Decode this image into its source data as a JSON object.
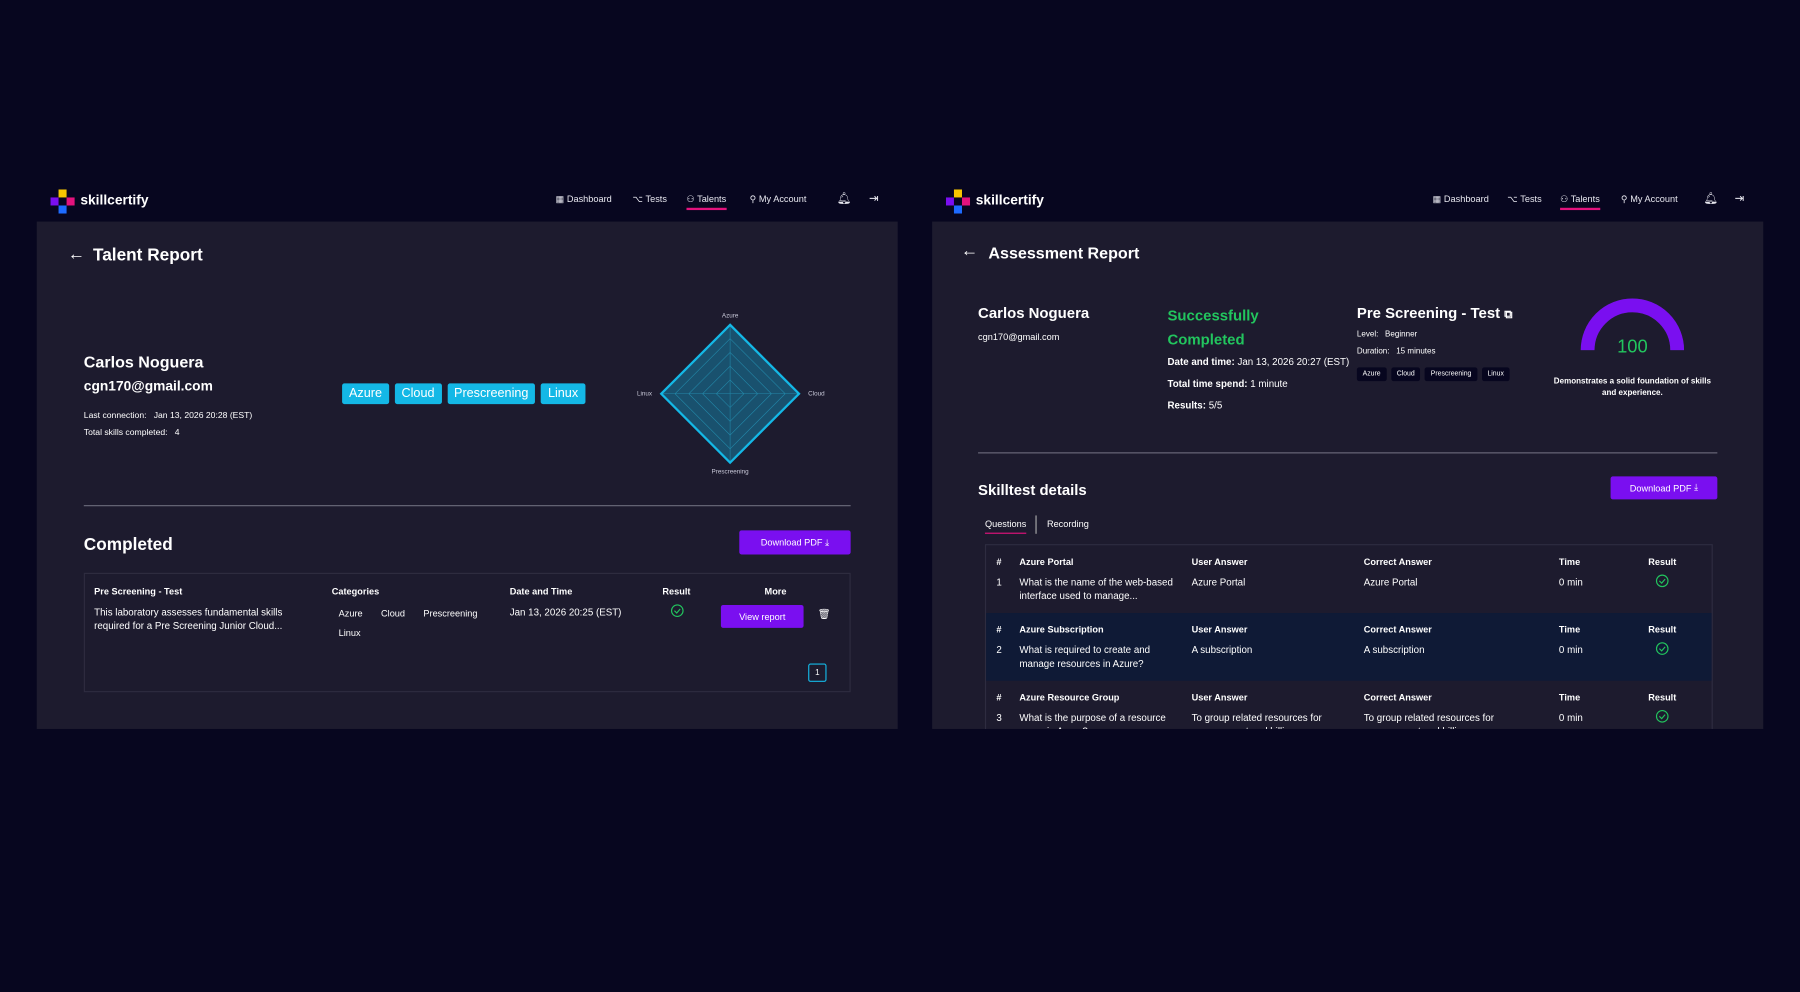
{
  "left": {
    "nav": {
      "logo": "skillcertify",
      "items": [
        "Dashboard",
        "Tests",
        "Talents",
        "My Account"
      ]
    },
    "title": "Talent Report",
    "profile": {
      "name": "Carlos Noguera",
      "email": "cgn170@gmail.com",
      "last_connection_label": "Last connection:",
      "last_connection": "Jan 13, 2026 20:28 (EST)",
      "skills_label": "Total skills completed:",
      "skills": 4
    },
    "tags": [
      "Azure",
      "Cloud",
      "Prescreening",
      "Linux"
    ],
    "radar": {
      "type": "radar",
      "categories": [
        "Azure",
        "Cloud",
        "Prescreening",
        "Linux"
      ],
      "values": [
        100,
        100,
        100,
        100
      ],
      "rlim": [
        0,
        100
      ]
    },
    "section": "Completed",
    "download": "Download PDF",
    "table": {
      "headers": [
        "Pre Screening - Test",
        "Categories",
        "Date and Time",
        "Result",
        "More"
      ],
      "row": {
        "description": "This laboratory assesses fundamental skills required for a Pre Screening Junior Cloud...",
        "categories": [
          "Azure",
          "Cloud",
          "Prescreening",
          "Linux"
        ],
        "date": "Jan 13, 2026 20:25 (EST)",
        "action": "View report"
      }
    },
    "page": 1
  },
  "right": {
    "nav": {
      "logo": "skillcertify",
      "items": [
        "Dashboard",
        "Tests",
        "Talents",
        "My Account"
      ]
    },
    "title": "Assessment Report",
    "profile": {
      "name": "Carlos Noguera",
      "email": "cgn170@gmail.com"
    },
    "status": "Successfully Completed",
    "details": [
      {
        "label": "Date and time:",
        "value": "Jan 13, 2026 20:27 (EST)"
      },
      {
        "label": "Total time spend:",
        "value": "1 minute"
      },
      {
        "label": "Results:",
        "value": "5/5"
      }
    ],
    "test": {
      "name": "Pre Screening - Test",
      "level_label": "Level:",
      "level": "Beginner",
      "duration_label": "Duration:",
      "duration": "15 minutes",
      "tags": [
        "Azure",
        "Cloud",
        "Prescreening",
        "Linux"
      ]
    },
    "gauge": {
      "type": "gauge",
      "value": 100,
      "lim": [
        0,
        100
      ],
      "caption": "Demonstrates a solid foundation of skills and experience."
    },
    "section": "Skilltest details",
    "download": "Download PDF",
    "tabs": [
      "Questions",
      "Recording"
    ],
    "headers": [
      "#",
      "User Answer",
      "Correct Answer",
      "Time",
      "Result"
    ],
    "questions": [
      {
        "num": 1,
        "title": "Azure Portal",
        "question": "What is the name of the web-based interface used to manage...",
        "user": "Azure Portal",
        "correct": "Azure Portal",
        "time": "0 min"
      },
      {
        "num": 2,
        "title": "Azure Subscription",
        "question": "What is required to create and manage resources in Azure?",
        "user": "A subscription",
        "correct": "A subscription",
        "time": "0 min"
      },
      {
        "num": 3,
        "title": "Azure Resource Group",
        "question": "What is the purpose of a resource group in Azure?",
        "user": "To group related resources for management and billing",
        "correct": "To group related resources for management and billing",
        "time": "0 min"
      }
    ]
  }
}
